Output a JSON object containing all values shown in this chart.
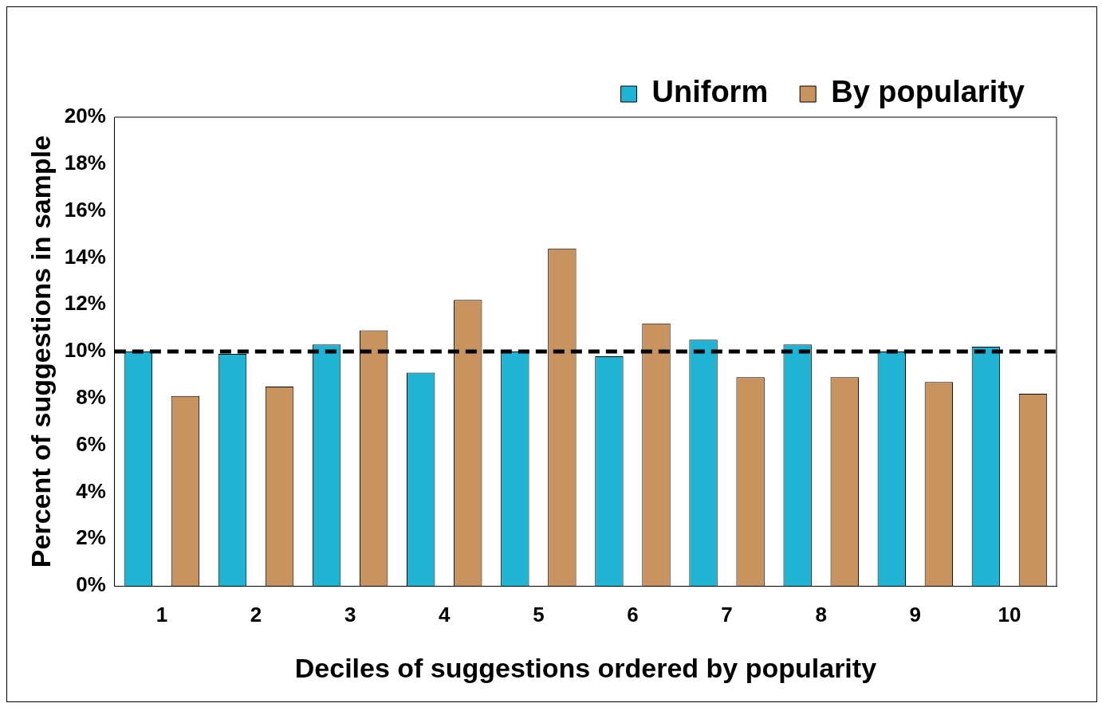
{
  "chart_data": {
    "type": "bar",
    "xlabel": "Deciles of suggestions ordered by popularity",
    "ylabel": "Percent of suggestions in sample",
    "categories": [
      "1",
      "2",
      "3",
      "4",
      "5",
      "6",
      "7",
      "8",
      "9",
      "10"
    ],
    "series": [
      {
        "name": "Uniform",
        "color": "#1fb3d4",
        "values": [
          10.0,
          9.9,
          10.3,
          9.1,
          10.0,
          9.8,
          10.5,
          10.3,
          10.0,
          10.2
        ]
      },
      {
        "name": "By popularity",
        "color": "#c8935f",
        "values": [
          8.1,
          8.5,
          10.9,
          12.2,
          14.4,
          11.2,
          8.9,
          8.9,
          8.7,
          8.2
        ]
      }
    ],
    "ylim": [
      0,
      20
    ],
    "yticks": [
      {
        "value": 0,
        "label": "0%"
      },
      {
        "value": 2,
        "label": "2%"
      },
      {
        "value": 4,
        "label": "4%"
      },
      {
        "value": 6,
        "label": "6%"
      },
      {
        "value": 8,
        "label": "8%"
      },
      {
        "value": 10,
        "label": "10%"
      },
      {
        "value": 12,
        "label": "12%"
      },
      {
        "value": 14,
        "label": "14%"
      },
      {
        "value": 16,
        "label": "16%"
      },
      {
        "value": 18,
        "label": "18%"
      },
      {
        "value": 20,
        "label": "20%"
      }
    ],
    "ref_lines": [
      {
        "axis": "y",
        "value": 10,
        "color": "#000000",
        "line_style": "dashed"
      }
    ],
    "grid": false,
    "legend": "top right"
  }
}
